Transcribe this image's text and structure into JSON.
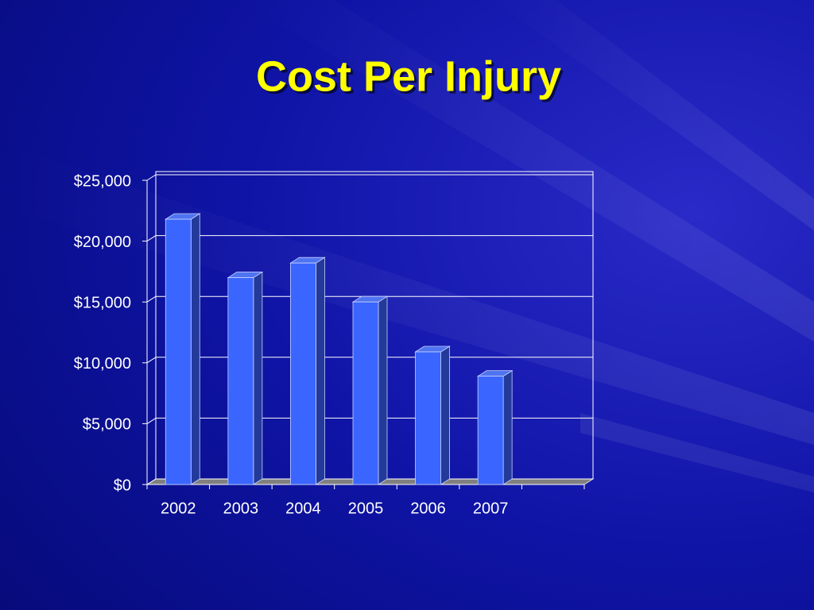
{
  "chart_data": {
    "type": "bar",
    "title": "Cost Per Injury",
    "categories": [
      "2002",
      "2003",
      "2004",
      "2005",
      "2006",
      "2007",
      null
    ],
    "values": [
      21800,
      17000,
      18200,
      15000,
      10900,
      8900,
      null
    ],
    "color": "#3a66ff",
    "ylim": [
      0,
      25000
    ],
    "yticks": [
      {
        "value": 0,
        "label": "$0"
      },
      {
        "value": 5000,
        "label": "$5,000"
      },
      {
        "value": 10000,
        "label": "$10,000"
      },
      {
        "value": 15000,
        "label": "$15,000"
      },
      {
        "value": 20000,
        "label": "$20,000"
      },
      {
        "value": 25000,
        "label": "$25,000"
      }
    ],
    "grid": true
  }
}
